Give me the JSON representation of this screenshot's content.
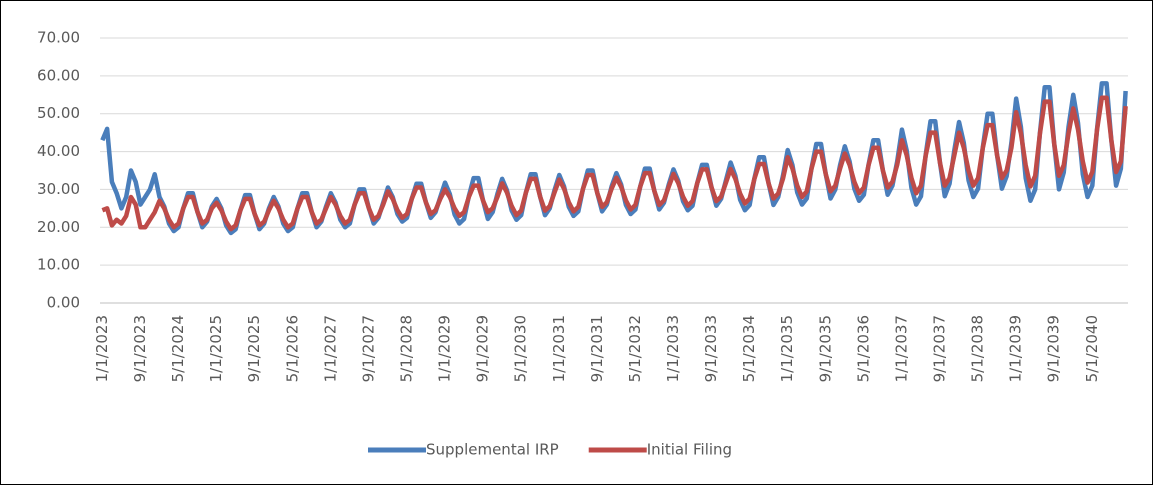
{
  "chart_data": {
    "type": "line",
    "categories": [
      "1/1/2023",
      null,
      null,
      null,
      null,
      null,
      null,
      null,
      "9/1/2023",
      null,
      null,
      null,
      null,
      null,
      null,
      null,
      "5/1/2024",
      null,
      null,
      null,
      null,
      null,
      null,
      null,
      "1/1/2025",
      null,
      null,
      null,
      null,
      null,
      null,
      null,
      "9/1/2025",
      null,
      null,
      null,
      null,
      null,
      null,
      null,
      "5/1/2026",
      null,
      null,
      null,
      null,
      null,
      null,
      null,
      "1/1/2027",
      null,
      null,
      null,
      null,
      null,
      null,
      null,
      "9/1/2027",
      null,
      null,
      null,
      null,
      null,
      null,
      null,
      "5/1/2028",
      null,
      null,
      null,
      null,
      null,
      null,
      null,
      "1/1/2029",
      null,
      null,
      null,
      null,
      null,
      null,
      null,
      "9/1/2029",
      null,
      null,
      null,
      null,
      null,
      null,
      null,
      "5/1/2030",
      null,
      null,
      null,
      null,
      null,
      null,
      null,
      "1/1/2031",
      null,
      null,
      null,
      null,
      null,
      null,
      null,
      "9/1/2031",
      null,
      null,
      null,
      null,
      null,
      null,
      null,
      "5/1/2032",
      null,
      null,
      null,
      null,
      null,
      null,
      null,
      "1/1/2033",
      null,
      null,
      null,
      null,
      null,
      null,
      null,
      "9/1/2033",
      null,
      null,
      null,
      null,
      null,
      null,
      null,
      "5/1/2034",
      null,
      null,
      null,
      null,
      null,
      null,
      null,
      "1/1/2035",
      null,
      null,
      null,
      null,
      null,
      null,
      null,
      "9/1/2035",
      null,
      null,
      null,
      null,
      null,
      null,
      null,
      "5/1/2036",
      null,
      null,
      null,
      null,
      null,
      null,
      null,
      "1/1/2037",
      null,
      null,
      null,
      null,
      null,
      null,
      null,
      "9/1/2037",
      null,
      null,
      null,
      null,
      null,
      null,
      null,
      "5/1/2038",
      null,
      null,
      null,
      null,
      null,
      null,
      null,
      "1/1/2039",
      null,
      null,
      null,
      null,
      null,
      null,
      null,
      "9/1/2039",
      null,
      null,
      null,
      null,
      null,
      null,
      null,
      "5/1/2040",
      null,
      null,
      null,
      null,
      null,
      null,
      null
    ],
    "series": [
      {
        "name": "Supplemental IRP",
        "color": "#4a7ebb",
        "values": [
          43,
          46,
          32,
          29,
          25,
          28,
          35,
          32,
          26,
          28,
          30,
          34,
          28,
          25.5,
          21,
          19,
          20,
          25,
          29,
          29,
          24,
          20,
          21.5,
          25.5,
          27.5,
          25,
          20.5,
          18.5,
          19.5,
          24.5,
          28.5,
          28.5,
          23.5,
          19.5,
          21,
          25,
          28,
          25.5,
          21,
          19,
          20,
          25,
          29,
          29,
          24,
          20,
          21.5,
          25.5,
          29,
          26.5,
          22,
          20,
          21,
          26,
          30,
          30,
          25,
          21,
          22.5,
          26.5,
          30.5,
          28,
          23.5,
          21.5,
          22.5,
          27.5,
          31.5,
          31.5,
          26.5,
          22.5,
          24,
          28,
          31.8,
          28.8,
          23.4,
          21,
          22.2,
          28.2,
          33,
          33,
          27,
          22.2,
          24,
          28.8,
          32.8,
          29.8,
          24.4,
          22,
          23.2,
          29.2,
          34,
          34,
          28,
          23.2,
          25,
          29.8,
          33.8,
          30.8,
          25.4,
          23,
          24.2,
          30.2,
          35,
          35,
          29,
          24.2,
          26,
          30.8,
          34.3,
          31.3,
          25.9,
          23.5,
          24.7,
          30.7,
          35.5,
          35.5,
          29.5,
          24.7,
          26.5,
          31.3,
          35.3,
          32.3,
          26.9,
          24.5,
          25.7,
          31.7,
          36.5,
          36.5,
          30.5,
          25.7,
          27.5,
          32.3,
          37.1,
          33.6,
          27.3,
          24.5,
          25.9,
          32.9,
          38.5,
          38.5,
          31.5,
          25.9,
          28,
          33.6,
          40.4,
          36.4,
          29.2,
          26,
          27.6,
          35.6,
          42,
          42,
          34,
          27.6,
          30,
          36.4,
          41.4,
          37.4,
          30.2,
          27,
          28.6,
          36.6,
          43,
          43,
          35,
          28.6,
          31,
          37.4,
          45.8,
          40.3,
          30.4,
          26,
          28.2,
          39.2,
          48,
          48,
          37,
          28.2,
          31.5,
          40.3,
          47.8,
          42.3,
          32.4,
          28,
          30.2,
          41.2,
          50,
          50,
          39,
          30.2,
          33.5,
          42.3,
          54,
          46.5,
          33,
          27,
          30,
          45,
          57,
          57,
          42,
          30,
          34.5,
          46.5,
          55,
          47.5,
          34,
          28,
          31,
          46,
          58,
          58,
          43,
          31,
          35.5,
          56
        ]
      },
      {
        "name": "Initial Filing",
        "color": "#be4b48",
        "values": [
          24.5,
          25,
          20.5,
          22,
          21,
          23,
          28,
          26,
          20,
          20,
          22,
          24,
          27,
          25,
          22,
          20,
          21,
          25,
          28,
          28,
          24,
          21,
          22,
          25,
          26.5,
          24.5,
          21.5,
          19.5,
          20.5,
          24.5,
          27.5,
          27.5,
          23.5,
          20.5,
          21.5,
          24.5,
          27,
          25,
          22,
          20,
          21,
          25,
          28,
          28,
          24,
          21,
          22,
          25,
          28,
          26,
          23,
          21,
          22,
          26,
          29,
          29,
          25,
          22,
          23,
          26,
          29.5,
          27.5,
          24.5,
          22.5,
          23.5,
          27.5,
          30.5,
          30.5,
          26.5,
          23.5,
          24.5,
          27.5,
          30,
          28,
          25,
          23,
          24,
          28,
          31,
          31,
          27,
          24,
          25,
          28,
          31.6,
          29.2,
          25.6,
          23.2,
          24.4,
          29.2,
          32.8,
          32.8,
          28,
          24.4,
          25.6,
          29.2,
          32.6,
          30.2,
          26.6,
          24.2,
          25.4,
          30.2,
          33.8,
          33.8,
          29,
          25.4,
          26.6,
          30.2,
          33.1,
          30.7,
          27.1,
          24.7,
          25.9,
          30.7,
          34.3,
          34.3,
          29.5,
          25.9,
          27.1,
          30.7,
          34.1,
          31.7,
          28.1,
          25.7,
          26.9,
          31.7,
          35.3,
          35.3,
          30.5,
          26.9,
          28.1,
          31.7,
          35.4,
          32.8,
          28.9,
          26.3,
          27.6,
          32.8,
          36.7,
          36.7,
          31.5,
          27.6,
          28.9,
          32.8,
          38.5,
          35.5,
          31,
          28,
          29.5,
          35.5,
          40,
          40,
          34,
          29.5,
          31,
          35.5,
          39.5,
          36.5,
          32,
          29,
          30.5,
          36.5,
          41,
          41,
          35,
          30.5,
          32,
          36.5,
          43,
          39,
          33,
          29,
          31,
          39,
          45,
          45,
          37,
          31,
          33,
          39,
          45,
          41,
          35,
          31,
          33,
          41,
          47,
          47,
          39,
          33,
          35,
          41,
          50.4,
          44.8,
          36.4,
          30.8,
          33.6,
          44.8,
          53.2,
          53.2,
          42,
          33.6,
          36.4,
          44.8,
          51.4,
          45.8,
          37.4,
          31.8,
          34.6,
          45.8,
          54.2,
          54.2,
          43,
          34.6,
          37.4,
          52
        ]
      }
    ],
    "ylim": [
      0,
      70
    ],
    "yticks": [
      {
        "value": 0,
        "label": "0.00"
      },
      {
        "value": 10,
        "label": "10.00"
      },
      {
        "value": 20,
        "label": "20.00"
      },
      {
        "value": 30,
        "label": "30.00"
      },
      {
        "value": 40,
        "label": "40.00"
      },
      {
        "value": 50,
        "label": "50.00"
      },
      {
        "value": 60,
        "label": "60.00"
      },
      {
        "value": 70,
        "label": "70.00"
      }
    ],
    "grid": true,
    "legend": "bottom"
  }
}
